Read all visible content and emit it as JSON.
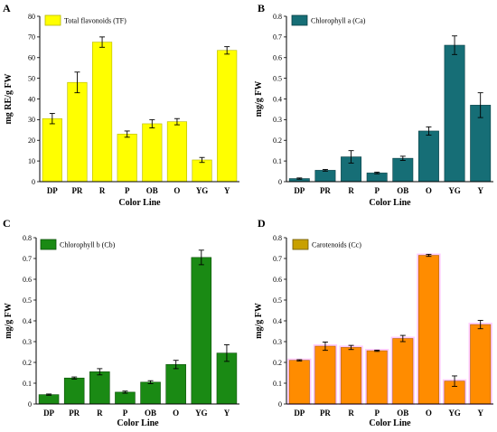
{
  "chart_data": [
    {
      "panel": "A",
      "type": "bar",
      "categories": [
        "DP",
        "PR",
        "R",
        "P",
        "OB",
        "O",
        "YG",
        "Y"
      ],
      "series": [
        {
          "name": "Total flavonoids (TF)",
          "values": [
            30.5,
            48,
            67.5,
            23,
            28,
            29,
            10.5,
            63.5
          ],
          "errors": [
            2.5,
            5,
            2.5,
            1.5,
            2,
            1.5,
            1.2,
            1.8
          ]
        }
      ],
      "ylim": [
        0,
        80
      ],
      "yticks": [
        0,
        10,
        20,
        30,
        40,
        50,
        60,
        70,
        80
      ],
      "xlabel": "Color Line",
      "ylabel": "mg RE/g FW",
      "legend": "top-left",
      "grid": false
    },
    {
      "panel": "B",
      "type": "bar",
      "categories": [
        "DP",
        "PR",
        "R",
        "P",
        "OB",
        "O",
        "YG",
        "Y"
      ],
      "series": [
        {
          "name": "Chlorophyll a (Ca)",
          "values": [
            0.015,
            0.055,
            0.12,
            0.042,
            0.113,
            0.245,
            0.66,
            0.37
          ],
          "errors": [
            0.003,
            0.004,
            0.03,
            0.004,
            0.01,
            0.02,
            0.045,
            0.06
          ]
        }
      ],
      "ylim": [
        0,
        0.8
      ],
      "yticks": [
        "0",
        "0.1",
        "0.2",
        "0.3",
        "0.4",
        "0.5",
        "0.6",
        "0.7",
        "0.8"
      ],
      "xlabel": "Color Line",
      "ylabel": "mg/g FW",
      "legend": "top-left",
      "grid": false
    },
    {
      "panel": "C",
      "type": "bar",
      "categories": [
        "DP",
        "PR",
        "R",
        "P",
        "OB",
        "O",
        "YG",
        "Y"
      ],
      "series": [
        {
          "name": "Chlorophyll b (Cb)",
          "values": [
            0.045,
            0.125,
            0.155,
            0.057,
            0.105,
            0.19,
            0.705,
            0.245
          ],
          "errors": [
            0.003,
            0.005,
            0.015,
            0.005,
            0.007,
            0.02,
            0.035,
            0.04
          ]
        }
      ],
      "ylim": [
        0,
        0.8
      ],
      "yticks": [
        "0",
        "0.1",
        "0.2",
        "0.3",
        "0.4",
        "0.5",
        "0.6",
        "0.7",
        "0.8"
      ],
      "xlabel": "Color Line",
      "ylabel": "mg/g FW",
      "legend": "top-left",
      "grid": false
    },
    {
      "panel": "D",
      "type": "bar",
      "categories": [
        "DP",
        "PR",
        "R",
        "P",
        "OB",
        "O",
        "YG",
        "Y"
      ],
      "series": [
        {
          "name": "Carotenoids (Cc)",
          "values": [
            0.21,
            0.278,
            0.272,
            0.256,
            0.315,
            0.715,
            0.11,
            0.382
          ],
          "errors": [
            0.003,
            0.02,
            0.01,
            0.003,
            0.015,
            0.005,
            0.025,
            0.02
          ]
        }
      ],
      "ylim": [
        0,
        0.8
      ],
      "yticks": [
        "0",
        "0.1",
        "0.2",
        "0.3",
        "0.4",
        "0.5",
        "0.6",
        "0.7",
        "0.8"
      ],
      "xlabel": "Color Line",
      "ylabel": "mg/g FW",
      "legend": "top-left",
      "grid": false
    }
  ],
  "colors": {
    "A": {
      "fill": "#ffff00",
      "edge": "#b7b700"
    },
    "B": {
      "fill": "#166e76",
      "edge": "#0b3f45"
    },
    "C": {
      "fill": "#1a8a14",
      "edge": "#0d4f0a"
    },
    "D": {
      "fill": "#ff8c00",
      "edge": "#b06000"
    },
    "D_legend": {
      "fill": "#c8a000",
      "edge": "#6a5500"
    },
    "D_glow": "#ff66ff"
  }
}
